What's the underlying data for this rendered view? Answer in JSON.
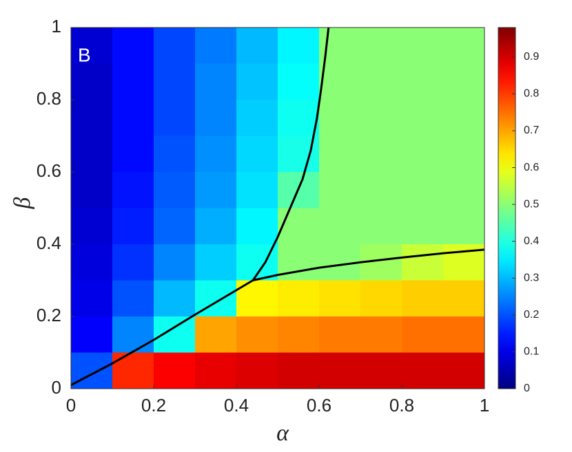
{
  "chart_data": {
    "type": "heatmap",
    "annotation": "B",
    "xlabel": "α",
    "ylabel": "β",
    "x": [
      0.05,
      0.15,
      0.25,
      0.35,
      0.45,
      0.55,
      0.65,
      0.75,
      0.85,
      0.95
    ],
    "y": [
      0.95,
      0.85,
      0.75,
      0.65,
      0.55,
      0.45,
      0.35,
      0.25,
      0.15,
      0.05
    ],
    "z": [
      [
        0.08,
        0.13,
        0.19,
        0.24,
        0.3,
        0.36,
        0.5,
        0.5,
        0.5,
        0.5
      ],
      [
        0.07,
        0.13,
        0.19,
        0.25,
        0.31,
        0.37,
        0.5,
        0.5,
        0.5,
        0.5
      ],
      [
        0.07,
        0.13,
        0.19,
        0.25,
        0.32,
        0.38,
        0.5,
        0.5,
        0.5,
        0.5
      ],
      [
        0.07,
        0.13,
        0.2,
        0.26,
        0.33,
        0.39,
        0.5,
        0.5,
        0.5,
        0.5
      ],
      [
        0.07,
        0.14,
        0.21,
        0.27,
        0.34,
        0.45,
        0.5,
        0.5,
        0.5,
        0.5
      ],
      [
        0.08,
        0.15,
        0.22,
        0.29,
        0.36,
        0.5,
        0.5,
        0.5,
        0.5,
        0.5
      ],
      [
        0.09,
        0.17,
        0.25,
        0.32,
        0.38,
        0.5,
        0.5,
        0.52,
        0.56,
        0.58
      ],
      [
        0.1,
        0.2,
        0.3,
        0.38,
        0.62,
        0.63,
        0.64,
        0.65,
        0.66,
        0.66
      ],
      [
        0.12,
        0.25,
        0.38,
        0.7,
        0.72,
        0.73,
        0.74,
        0.74,
        0.75,
        0.75
      ],
      [
        0.2,
        0.82,
        0.86,
        0.88,
        0.89,
        0.9,
        0.9,
        0.9,
        0.9,
        0.9
      ]
    ],
    "clim": [
      0,
      0.98
    ],
    "cticks": [
      0,
      0.1,
      0.2,
      0.3,
      0.4,
      0.5,
      0.6,
      0.7,
      0.8,
      0.9
    ],
    "colormap": "jet",
    "lines": [
      {
        "color": "#000000",
        "x": [
          0,
          0.1,
          0.2,
          0.3,
          0.44
        ],
        "y": [
          0.01,
          0.07,
          0.135,
          0.205,
          0.3
        ]
      },
      {
        "color": "#000000",
        "x": [
          0.44,
          0.47,
          0.5,
          0.53,
          0.56,
          0.58,
          0.595,
          0.605,
          0.615,
          0.623
        ],
        "y": [
          0.3,
          0.35,
          0.42,
          0.5,
          0.58,
          0.66,
          0.75,
          0.83,
          0.92,
          1
        ]
      },
      {
        "color": "#000000",
        "x": [
          0.44,
          0.5,
          0.6,
          0.7,
          0.8,
          0.9,
          1
        ],
        "y": [
          0.3,
          0.315,
          0.335,
          0.35,
          0.363,
          0.375,
          0.385
        ]
      }
    ],
    "xlim": [
      0,
      1
    ],
    "ylim": [
      0,
      1
    ],
    "xticks": [
      0,
      0.2,
      0.4,
      0.6,
      0.8,
      1
    ],
    "yticks": [
      0,
      0.2,
      0.4,
      0.6,
      0.8,
      1
    ]
  }
}
